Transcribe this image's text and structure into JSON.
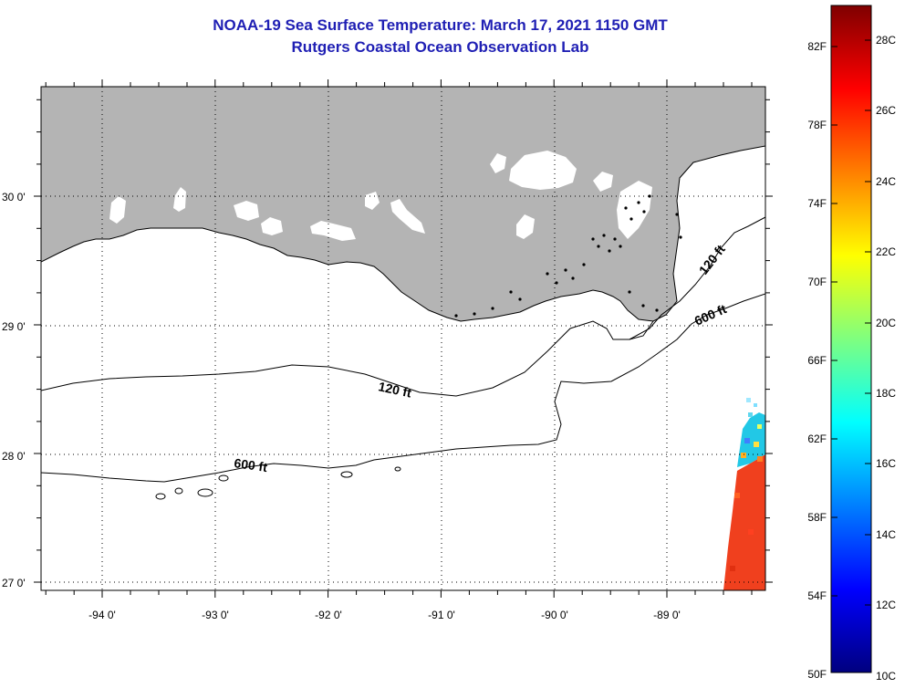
{
  "header": {
    "title": "NOAA-19 Sea Surface Temperature:  March 17, 2021 1150 GMT",
    "subtitle": "Rutgers Coastal Ocean Observation Lab"
  },
  "map": {
    "lat_labels": [
      "30 0'",
      "29 0'",
      "28 0'",
      "27 0'"
    ],
    "lon_labels": [
      "-94 0'",
      "-93 0'",
      "-92 0'",
      "-91 0'",
      "-90 0'",
      "-89 0'"
    ],
    "contour_labels": [
      "120 ft",
      "120 ft",
      "600 ft",
      "600 ft"
    ],
    "colors": {
      "land": "#b4b4b4",
      "ocean": "#ffffff",
      "contour": "#000000",
      "sst_warm": "#f0401e",
      "sst_cool": "#22c8e6"
    }
  },
  "colorbar": {
    "fahrenheit_labels": [
      "82F",
      "78F",
      "74F",
      "70F",
      "66F",
      "62F",
      "58F",
      "54F",
      "50F"
    ],
    "celsius_labels": [
      "28C",
      "26C",
      "24C",
      "22C",
      "20C",
      "18C",
      "16C",
      "14C",
      "12C",
      "10C"
    ],
    "gradient": [
      "#00007f",
      "#0000ff",
      "#007fff",
      "#00ffff",
      "#7fff7f",
      "#ffff00",
      "#ff7f00",
      "#ff0000",
      "#7f0000"
    ]
  }
}
